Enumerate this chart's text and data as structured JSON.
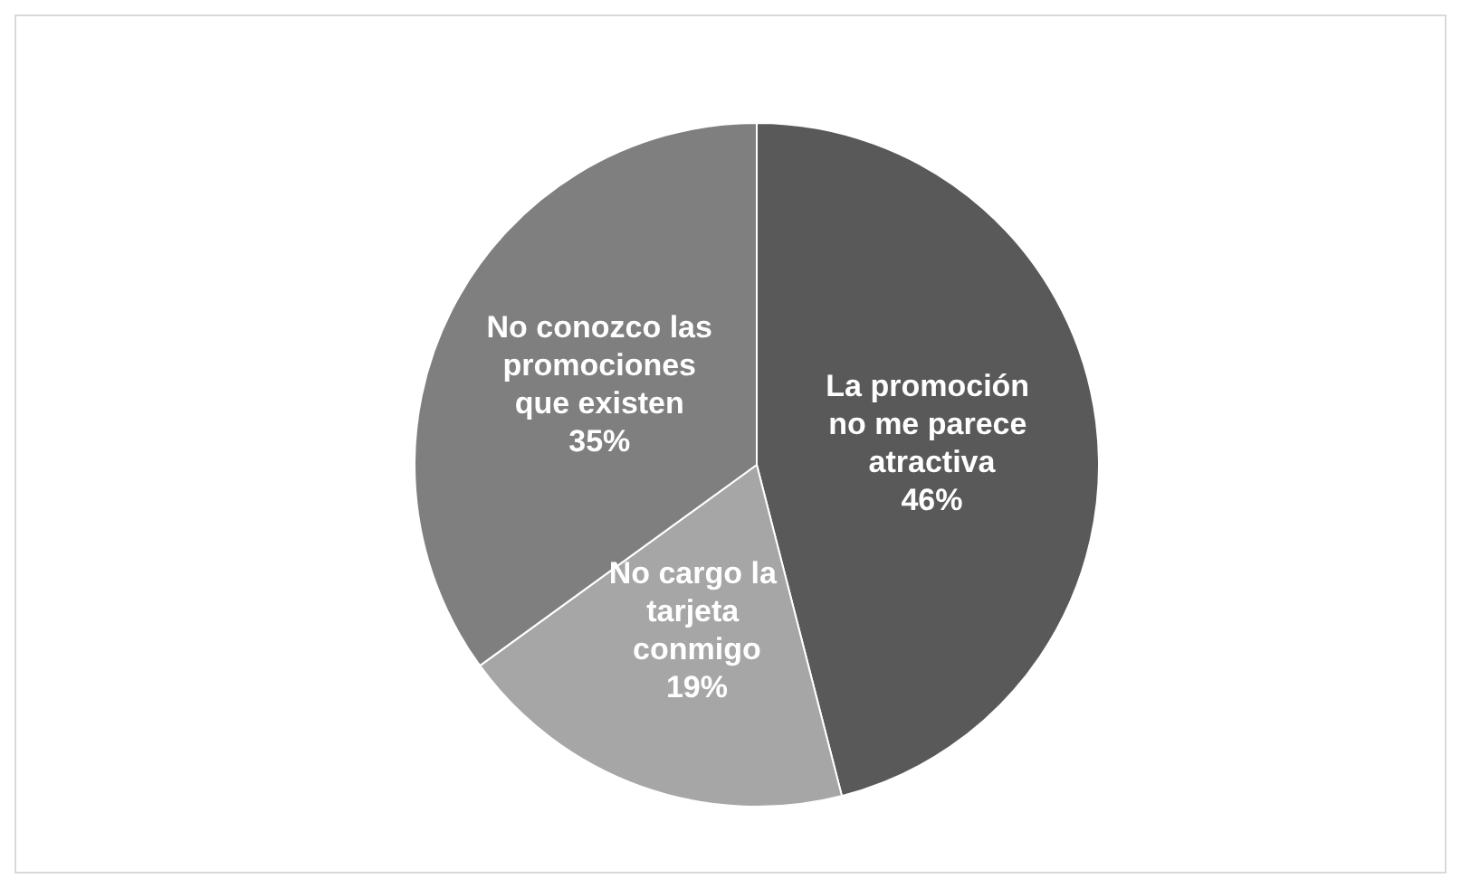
{
  "chart_data": {
    "type": "pie",
    "categories": [
      "La promoción no me parece atractiva",
      "No cargo la tarjeta conmigo",
      "No conozco las promociones que existen"
    ],
    "values": [
      46,
      19,
      35
    ],
    "colors": [
      "#595959",
      "#a6a6a6",
      "#7f7f7f"
    ],
    "value_labels": [
      "46%",
      "19%",
      "35%"
    ],
    "legend": false
  }
}
